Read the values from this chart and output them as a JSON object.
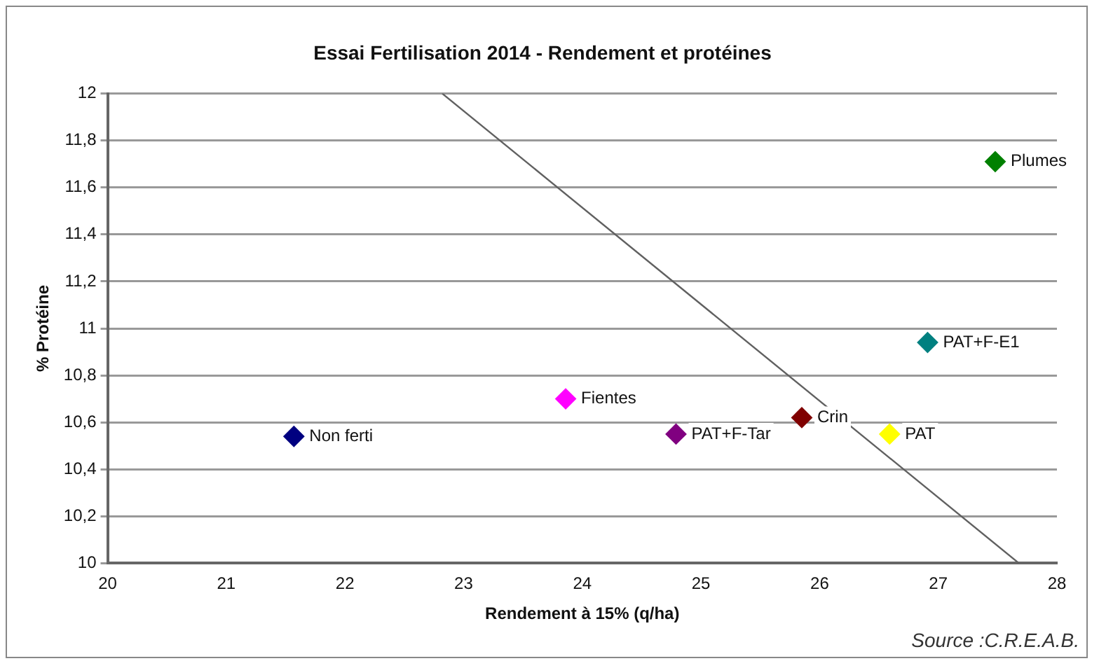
{
  "chart_data": {
    "type": "scatter",
    "title": "Essai Fertilisation 2014 - Rendement et protéines",
    "xlabel": "Rendement à 15% (q/ha)",
    "ylabel": "% Protéine",
    "series": [
      {
        "name": "Non ferti",
        "color": "#000080",
        "x": [
          21.57
        ],
        "values": [
          10.54
        ]
      },
      {
        "name": "Fientes",
        "color": "#ff00ff",
        "x": [
          23.86
        ],
        "values": [
          10.7
        ]
      },
      {
        "name": "PAT+F-Tar",
        "color": "#800080",
        "x": [
          24.79
        ],
        "values": [
          10.55
        ]
      },
      {
        "name": "Crin",
        "color": "#800000",
        "x": [
          25.85
        ],
        "values": [
          10.62
        ]
      },
      {
        "name": "PAT",
        "color": "#ffff00",
        "x": [
          26.59
        ],
        "values": [
          10.55
        ]
      },
      {
        "name": "PAT+F-E1",
        "color": "#008080",
        "x": [
          26.91
        ],
        "values": [
          10.94
        ]
      },
      {
        "name": "Plumes",
        "color": "#008000",
        "x": [
          27.48
        ],
        "values": [
          11.71
        ]
      },
      {
        "type": "line",
        "color": "#606060",
        "x": [
          22.82,
          27.68
        ],
        "values": [
          12,
          10
        ],
        "marker": "none"
      }
    ],
    "marker": "diamond",
    "grid": "y",
    "legend": false,
    "xlim": [
      20,
      28
    ],
    "xticks": [
      20,
      21,
      22,
      23,
      24,
      25,
      26,
      27,
      28
    ],
    "ylim": [
      10,
      12
    ],
    "yticks": [
      10,
      {
        "value": 10.2,
        "label": "10,2"
      },
      {
        "value": 10.4,
        "label": "10,4"
      },
      {
        "value": 10.6,
        "label": "10,6"
      },
      {
        "value": 10.8,
        "label": "10,8"
      },
      11,
      {
        "value": 11.2,
        "label": "11,2"
      },
      {
        "value": 11.4,
        "label": "11,4"
      },
      {
        "value": 11.6,
        "label": "11,6"
      },
      {
        "value": 11.8,
        "label": "11,8"
      },
      12
    ],
    "annotations": [
      "Source :C.R.E.A.B."
    ]
  }
}
